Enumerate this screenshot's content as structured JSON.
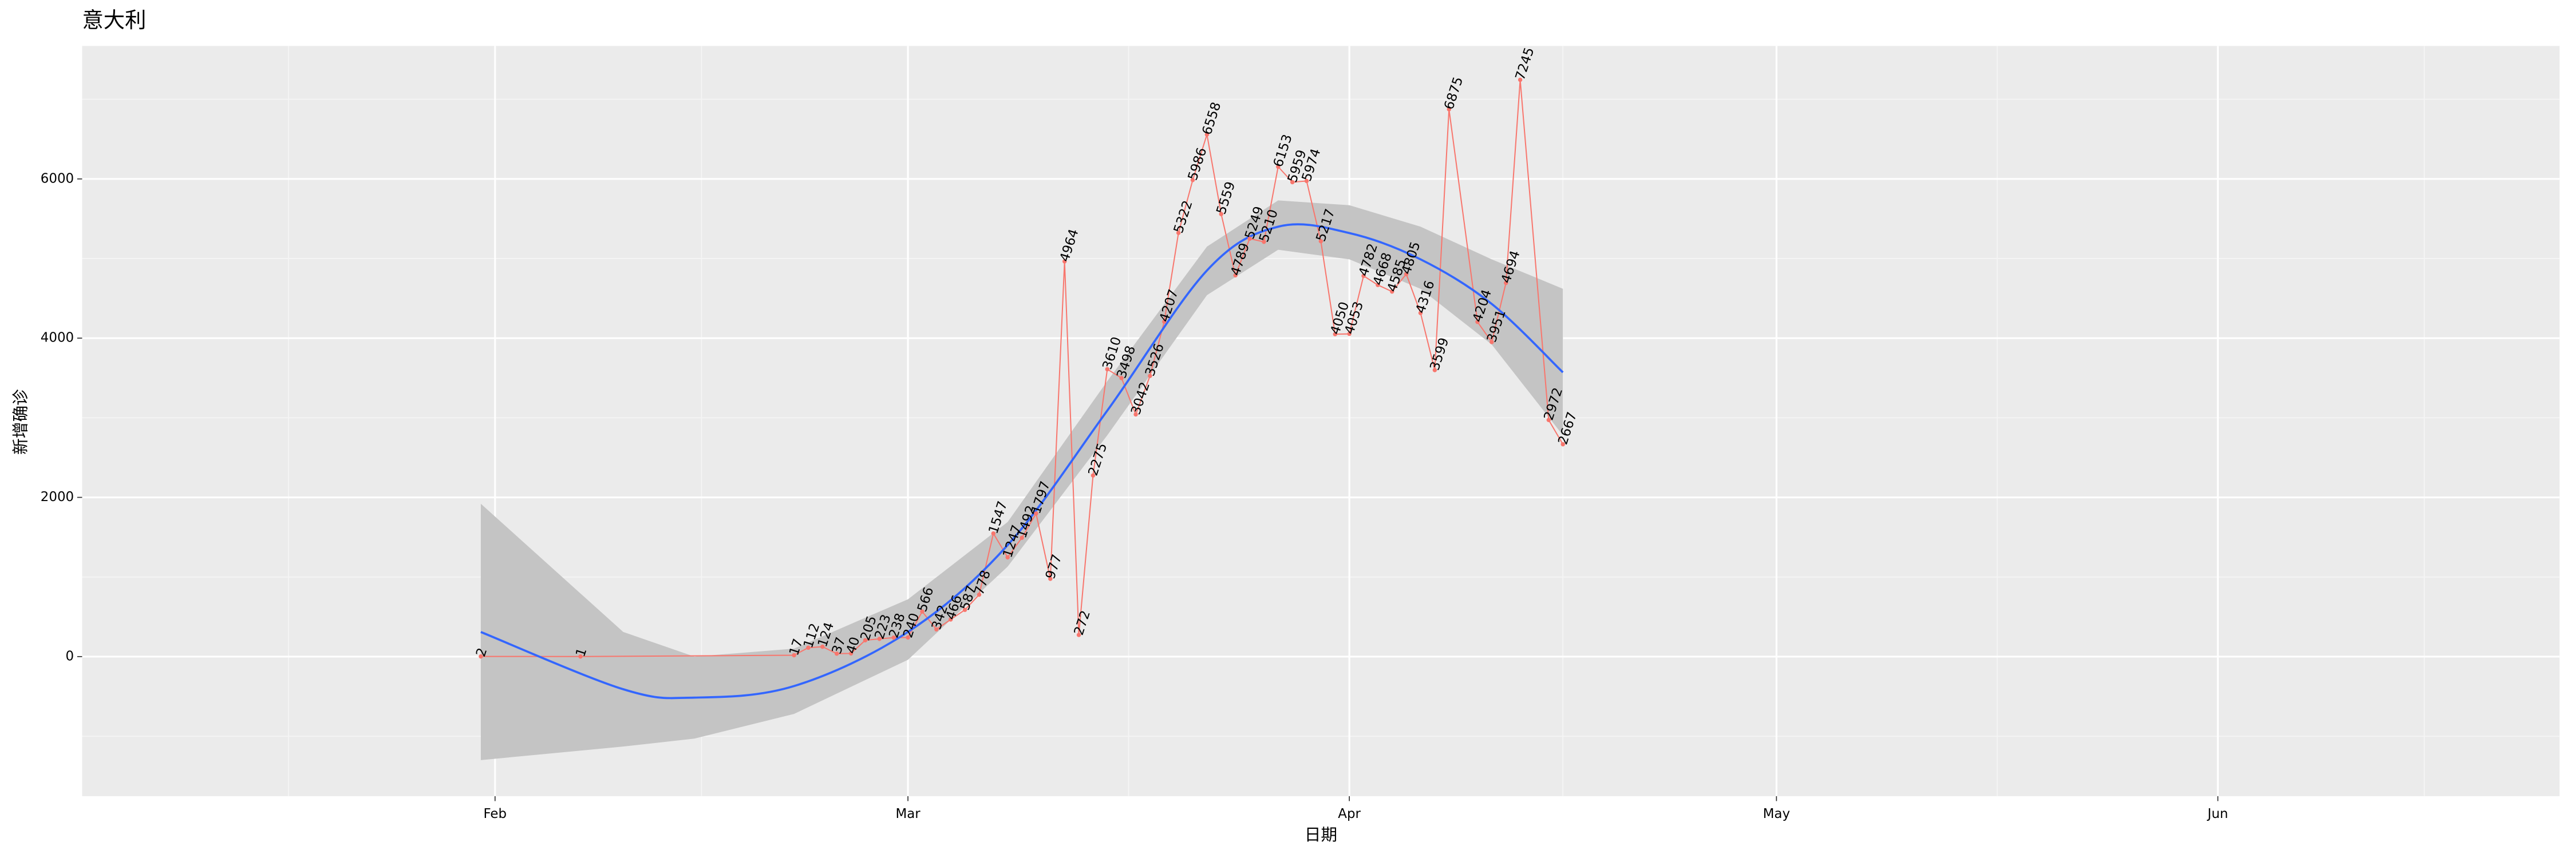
{
  "chart_data": {
    "type": "line",
    "title": "意大利",
    "x_label": "日期",
    "y_label": "新增确诊",
    "x": [
      "01-31",
      "02-07",
      "02-22",
      "02-23",
      "02-24",
      "02-25",
      "02-26",
      "02-27",
      "02-28",
      "02-29",
      "03-01",
      "03-02",
      "03-03",
      "03-04",
      "03-05",
      "03-06",
      "03-07",
      "03-08",
      "03-09",
      "03-10",
      "03-11",
      "03-12",
      "03-13",
      "03-14",
      "03-15",
      "03-16",
      "03-17",
      "03-18",
      "03-19",
      "03-20",
      "03-21",
      "03-22",
      "03-23",
      "03-24",
      "03-25",
      "03-26",
      "03-27",
      "03-28",
      "03-29",
      "03-30",
      "03-31",
      "04-01",
      "04-02",
      "04-03",
      "04-04",
      "04-05",
      "04-06",
      "04-07",
      "04-08",
      "04-10",
      "04-11",
      "04-12",
      "04-13",
      "04-15",
      "04-16"
    ],
    "series": [
      {
        "color": "#f8766d",
        "values": [
          2,
          1,
          17,
          112,
          124,
          37,
          40,
          205,
          223,
          238,
          240,
          566,
          342,
          466,
          587,
          778,
          1547,
          1247,
          1492,
          1797,
          977,
          4964,
          272,
          2275,
          3610,
          3498,
          3042,
          3526,
          4207,
          5322,
          5986,
          6558,
          5559,
          4789,
          5249,
          5210,
          6153,
          5959,
          5974,
          5217,
          4050,
          4053,
          4782,
          4668,
          4585,
          4805,
          4316,
          3599,
          6875,
          4204,
          3951,
          4694,
          7245,
          2972,
          2667
        ]
      }
    ],
    "smooth": {
      "color": "#3366ff",
      "band_color": "#c4c4c4",
      "x": [
        "01-31",
        "02-10",
        "02-15",
        "02-22",
        "03-01",
        "03-08",
        "03-15",
        "03-22",
        "03-27",
        "04-01",
        "04-06",
        "04-11",
        "04-16"
      ],
      "values": [
        309,
        -410,
        -515,
        -370,
        310,
        1400,
        3090,
        4850,
        5400,
        5320,
        4990,
        4430,
        3570
      ],
      "lower": [
        -1300,
        -1130,
        -1030,
        -720,
        -40,
        1130,
        2780,
        4540,
        5110,
        4990,
        4620,
        3920,
        2780
      ],
      "upper": [
        1920,
        310,
        0,
        100,
        720,
        1690,
        3460,
        5150,
        5730,
        5670,
        5400,
        4990,
        4620
      ]
    },
    "xlim": [
      "01-03",
      "06-25"
    ],
    "xticks": [
      {
        "value": "02-01",
        "label": "Feb"
      },
      {
        "value": "03-01",
        "label": "Mar"
      },
      {
        "value": "04-01",
        "label": "Apr"
      },
      {
        "value": "05-01",
        "label": "May"
      },
      {
        "value": "06-01",
        "label": "Jun"
      }
    ],
    "ylim": [
      -1753,
      7670
    ],
    "yticks": [
      0,
      2000,
      4000,
      6000
    ],
    "grid": true
  }
}
